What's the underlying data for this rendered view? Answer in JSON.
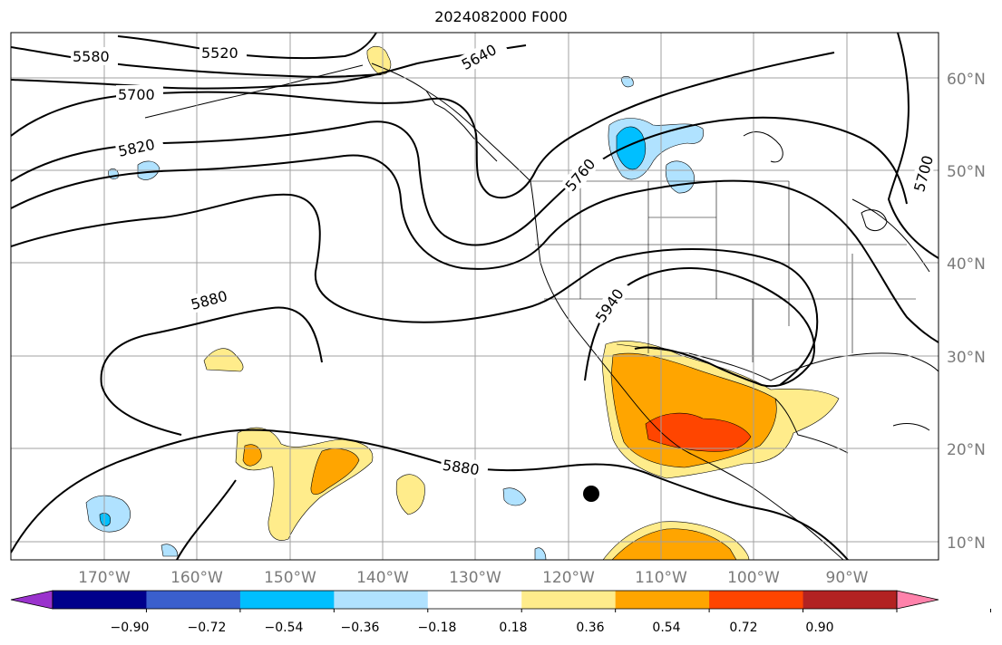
{
  "title": "2024082000 F000",
  "lat_labels": [
    "60°N",
    "50°N",
    "40°N",
    "30°N",
    "20°N",
    "10°N"
  ],
  "lon_labels": [
    "170°W",
    "160°W",
    "150°W",
    "140°W",
    "130°W",
    "120°W",
    "110°W",
    "100°W",
    "90°W"
  ],
  "contour_labels": [
    "5580",
    "5520",
    "5640",
    "5700",
    "5820",
    "5760",
    "5700",
    "5880",
    "5940",
    "5880"
  ],
  "colorbar": {
    "colors": [
      "#9a32cd",
      "#00008b",
      "#3a5fcd",
      "#00bfff",
      "#b0e2ff",
      "#ffffff",
      "#ffec8b",
      "#ffa500",
      "#ff4500",
      "#b22222",
      "#ff82ab"
    ],
    "tick_labels": [
      "−0.90",
      "−0.72",
      "−0.54",
      "−0.36",
      "−0.18",
      "0.18",
      "0.36",
      "0.54",
      "0.72",
      "0.90"
    ]
  },
  "colors": {
    "yellow": "#ffec8b",
    "orange": "#ffa500",
    "red": "#ff4500",
    "lightblue": "#b0e2ff",
    "blue": "#00bfff",
    "grid": "#a0a0a0"
  },
  "marker": "storm-center-dot"
}
